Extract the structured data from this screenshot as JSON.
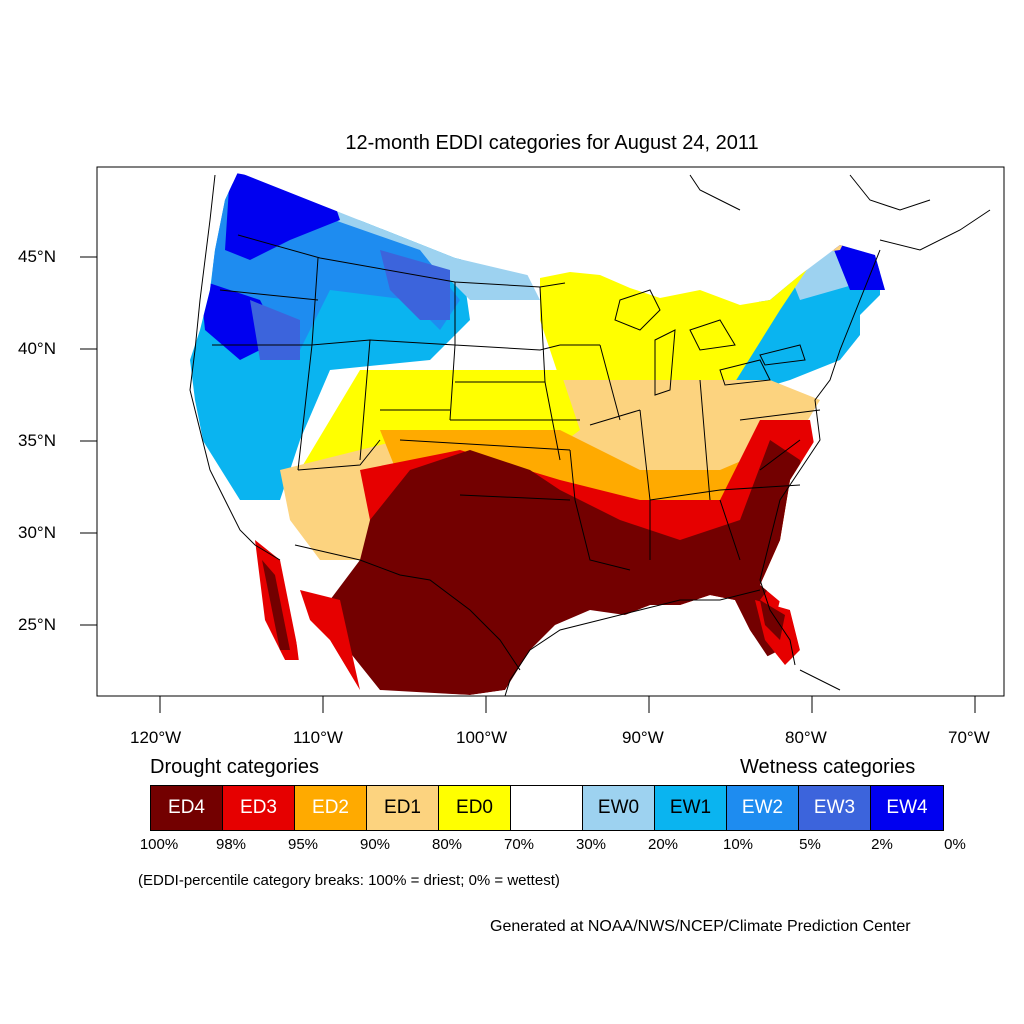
{
  "title": "12-month EDDI categories for August 24, 2011",
  "axes": {
    "latitude_labels": [
      "45°N",
      "40°N",
      "35°N",
      "30°N",
      "25°N"
    ],
    "longitude_labels": [
      "120°W",
      "110°W",
      "100°W",
      "90°W",
      "80°W",
      "70°W"
    ]
  },
  "legend": {
    "drought_heading": "Drought categories",
    "wetness_heading": "Wetness categories",
    "categories": [
      {
        "label": "ED4",
        "color": "#730000",
        "text_color": "#ffffff"
      },
      {
        "label": "ED3",
        "color": "#e60000",
        "text_color": "#ffffff"
      },
      {
        "label": "ED2",
        "color": "#ffaa00",
        "text_color": "#ffffff"
      },
      {
        "label": "ED1",
        "color": "#fcd37f",
        "text_color": "#000000"
      },
      {
        "label": "ED0",
        "color": "#ffff00",
        "text_color": "#000000"
      },
      {
        "label": "",
        "color": "#ffffff",
        "text_color": "#000000"
      },
      {
        "label": "EW0",
        "color": "#9dd2f0",
        "text_color": "#000000"
      },
      {
        "label": "EW1",
        "color": "#0ab4f0",
        "text_color": "#000000"
      },
      {
        "label": "EW2",
        "color": "#1e8cf0",
        "text_color": "#ffffff"
      },
      {
        "label": "EW3",
        "color": "#3c64dc",
        "text_color": "#ffffff"
      },
      {
        "label": "EW4",
        "color": "#0000f0",
        "text_color": "#ffffff"
      }
    ],
    "breaks": [
      "100%",
      "98%",
      "95%",
      "90%",
      "80%",
      "70%",
      "30%",
      "20%",
      "10%",
      "5%",
      "2%",
      "0%"
    ]
  },
  "footnote": "(EDDI-percentile category breaks: 100% = driest; 0% = wettest)",
  "credit": "Generated at NOAA/NWS/NCEP/Climate Prediction Center"
}
